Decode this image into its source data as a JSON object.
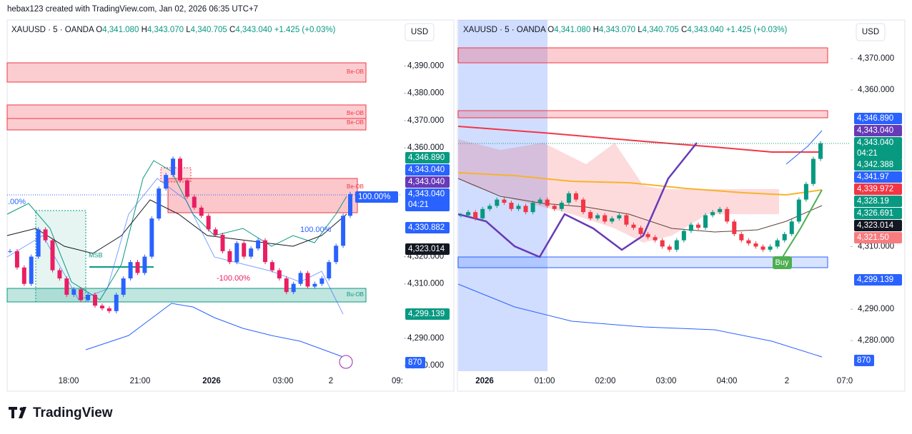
{
  "header": {
    "text": "hebax123 created with TradingView.com, Jan 02, 2026 06:35 UTC+7"
  },
  "panels": [
    {
      "symbol": "XAUUSD · 5 · OANDA",
      "ohlc": [
        {
          "key": "O",
          "value": "4,341.080"
        },
        {
          "key": "H",
          "value": "4,343.070"
        },
        {
          "key": "L",
          "value": "4,340.705"
        },
        {
          "key": "C",
          "value": "4,343.040"
        }
      ],
      "change": "+1.425 (+0.03%)",
      "currency": "USD",
      "ylim": [
        4277.4,
        4406.4
      ],
      "yticks": [
        {
          "value": 4280,
          "label": "4,280.000"
        },
        {
          "value": 4290,
          "label": "4,290.000"
        },
        {
          "value": 4310,
          "label": "4,310.000"
        },
        {
          "value": 4320,
          "label": "4,320.000"
        },
        {
          "value": 4360,
          "label": "4,360.000"
        },
        {
          "value": 4370,
          "label": "4,370.000"
        },
        {
          "value": 4380,
          "label": "4,380.000"
        },
        {
          "value": 4390,
          "label": "4,390.000"
        }
      ],
      "time_labels": [
        "18:00",
        "21:00",
        "2026",
        "03:00",
        "2",
        "09:"
      ],
      "closes": [
        4322,
        4316,
        4310,
        4320,
        4330,
        4326,
        4315,
        4312,
        4306,
        4308,
        4304,
        4306,
        4302,
        4301,
        4300,
        4306,
        4312,
        4318,
        4314,
        4320,
        4334,
        4345,
        4350,
        4356,
        4348,
        4342,
        4338,
        4335,
        4330,
        4328,
        4322,
        4318,
        4325,
        4320,
        4323,
        4326,
        4318,
        4315,
        4312,
        4307,
        4310,
        4314,
        4309,
        4310,
        4312,
        4318,
        4324,
        4335,
        4343
      ],
      "tags": [
        "100.00%",
        "4,346.890",
        "4,343.040",
        "4,343.040",
        {
          "price": "4,343.040",
          "timer": "04:21"
        },
        "4,330.882",
        "4,323.014",
        "4,299.139",
        "870"
      ],
      "annotations": [
        "Be-OB",
        "Be-OB",
        "Be-OB",
        "Be-OB",
        "Bu-OB",
        "MSB",
        "100.00%",
        "-100.00%",
        ".00%"
      ]
    },
    {
      "symbol": "XAUUSD · 5 · OANDA",
      "ohlc": [
        {
          "key": "O",
          "value": "4,341.080"
        },
        {
          "key": "H",
          "value": "4,343.070"
        },
        {
          "key": "L",
          "value": "4,340.705"
        },
        {
          "key": "C",
          "value": "4,343.040"
        }
      ],
      "change": "+1.425 (+0.03%)",
      "currency": "USD",
      "ylim": [
        4270.2,
        4381.9
      ],
      "yticks": [
        {
          "value": 4280,
          "label": "4,280.000"
        },
        {
          "value": 4290,
          "label": "4,290.000"
        },
        {
          "value": 4310,
          "label": "4,310.000"
        },
        {
          "value": 4360,
          "label": "4,360.000"
        },
        {
          "value": 4370,
          "label": "4,370.000"
        }
      ],
      "time_labels": [
        "2026",
        "01:00",
        "02:00",
        "03:00",
        "04:00",
        "2",
        "07:0"
      ],
      "closes": [
        4320,
        4321,
        4319,
        4322,
        4323,
        4325,
        4324,
        4322,
        4323,
        4321,
        4324,
        4325,
        4323,
        4322,
        4324,
        4327,
        4325,
        4321,
        4319,
        4320,
        4318,
        4319,
        4320,
        4317,
        4316,
        4314,
        4313,
        4312,
        4310,
        4309,
        4312,
        4315,
        4317,
        4316,
        4320,
        4321,
        4322,
        4318,
        4314,
        4312,
        4311,
        4310,
        4309,
        4310,
        4312,
        4314,
        4318,
        4325,
        4330,
        4338,
        4343
      ],
      "tags": [
        "4,346.890",
        "4,343.040",
        {
          "price": "4,343.040",
          "timer": "04:21"
        },
        "4,342.388",
        "4,341.97",
        "4,339.972",
        "4,328.19",
        "4,326.691",
        "4,323.014",
        "4,321.50",
        "4,299.139",
        "870"
      ],
      "annotations": [
        "Buy"
      ]
    }
  ],
  "footer": {
    "brand": "TradingView"
  }
}
